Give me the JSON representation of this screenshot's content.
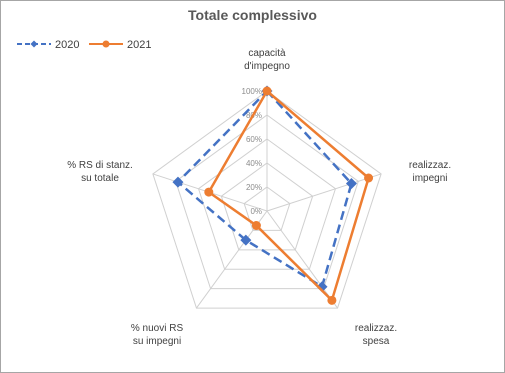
{
  "chart_data": {
    "type": "radar",
    "title": "Totale complessivo",
    "categories": [
      [
        "capacità",
        "d'impegno"
      ],
      [
        "realizzaz.",
        "impegni"
      ],
      [
        "realizzaz.",
        "spesa"
      ],
      [
        "% nuovi RS",
        "su impegni"
      ],
      [
        "% RS di stanz.",
        "su totale"
      ]
    ],
    "tick_labels": [
      "0%",
      "20%",
      "40%",
      "60%",
      "80%",
      "100%"
    ],
    "rlim": [
      0,
      100
    ],
    "grid": true,
    "legend_position": "top-left",
    "series": [
      {
        "name": "2020",
        "values": [
          100,
          74,
          78,
          30,
          78
        ],
        "color": "#4472c4",
        "line_style": "dashed",
        "marker": "diamond"
      },
      {
        "name": "2021",
        "values": [
          100,
          89,
          92,
          15,
          51
        ],
        "color": "#ed7d31",
        "line_style": "solid",
        "marker": "circle"
      }
    ]
  }
}
